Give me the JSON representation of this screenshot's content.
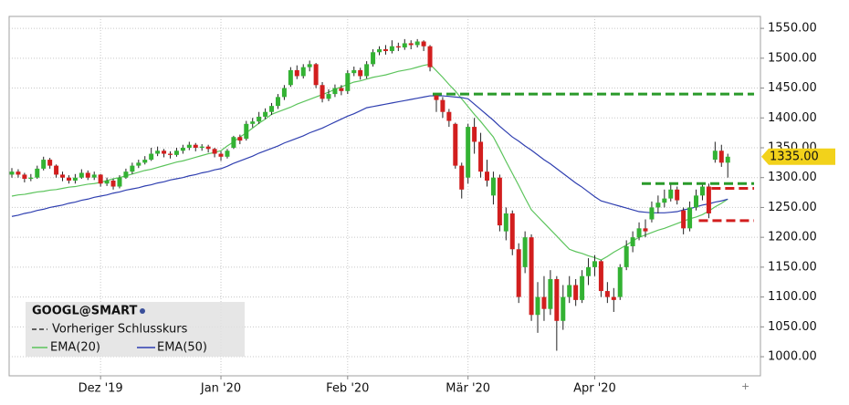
{
  "chart_data": {
    "type": "candlestick",
    "symbol": "GOOGL@SMART",
    "prev_close_label": "Vorheriger Schlusskurs",
    "up_color": "#33b233",
    "down_color": "#d21e1e",
    "grid": true,
    "categories": [
      null,
      null,
      null,
      null,
      null,
      null,
      null,
      null,
      null,
      null,
      null,
      null,
      null,
      null,
      "Dez '19",
      null,
      null,
      null,
      null,
      null,
      null,
      null,
      null,
      null,
      null,
      null,
      null,
      null,
      null,
      null,
      null,
      null,
      null,
      "Jan '20",
      null,
      null,
      null,
      null,
      null,
      null,
      null,
      null,
      null,
      null,
      null,
      null,
      null,
      null,
      null,
      null,
      null,
      null,
      null,
      "Feb '20",
      null,
      null,
      null,
      null,
      null,
      null,
      null,
      null,
      null,
      null,
      null,
      null,
      null,
      null,
      null,
      null,
      null,
      null,
      "Mär '20",
      null,
      null,
      null,
      null,
      null,
      null,
      null,
      null,
      null,
      null,
      null,
      null,
      null,
      null,
      null,
      null,
      null,
      null,
      null,
      "Apr '20",
      null,
      null,
      null,
      null,
      null,
      null,
      null,
      null,
      null,
      null,
      null,
      null,
      null,
      null,
      null,
      null,
      null,
      null,
      null,
      null,
      null
    ],
    "open": [
      1305,
      1310,
      1305,
      1298,
      1300,
      1315,
      1330,
      1320,
      1305,
      1300,
      1295,
      1300,
      1308,
      1300,
      1305,
      1290,
      1295,
      1285,
      1300,
      1310,
      1320,
      1325,
      1330,
      1340,
      1345,
      1340,
      1338,
      1345,
      1350,
      1355,
      1350,
      1352,
      1348,
      1340,
      1335,
      1350,
      1368,
      1365,
      1390,
      1394,
      1402,
      1410,
      1420,
      1435,
      1455,
      1480,
      1470,
      1485,
      1490,
      1455,
      1432,
      1440,
      1450,
      1445,
      1475,
      1480,
      1470,
      1490,
      1510,
      1515,
      1512,
      1520,
      1518,
      1525,
      1522,
      1528,
      1520,
      1440,
      1430,
      1410,
      1390,
      1320,
      1300,
      1385,
      1360,
      1310,
      1270,
      1300,
      1210,
      1240,
      1180,
      1150,
      1200,
      1070,
      1100,
      1080,
      1130,
      1060,
      1100,
      1120,
      1095,
      1135,
      1150,
      1160,
      1110,
      1100,
      1100,
      1150,
      1185,
      1200,
      1215,
      1230,
      1250,
      1258,
      1265,
      1280,
      1245,
      1215,
      1250,
      1270,
      1285,
      1330,
      1345,
      1325
    ],
    "high": [
      1316,
      1314,
      1308,
      1306,
      1320,
      1335,
      1333,
      1322,
      1310,
      1304,
      1306,
      1314,
      1312,
      1310,
      1306,
      1300,
      1298,
      1304,
      1315,
      1325,
      1330,
      1336,
      1350,
      1352,
      1348,
      1344,
      1350,
      1355,
      1360,
      1358,
      1356,
      1355,
      1350,
      1344,
      1348,
      1370,
      1372,
      1395,
      1400,
      1410,
      1416,
      1425,
      1440,
      1455,
      1485,
      1488,
      1490,
      1496,
      1492,
      1460,
      1448,
      1456,
      1455,
      1480,
      1486,
      1484,
      1495,
      1515,
      1520,
      1522,
      1530,
      1526,
      1532,
      1530,
      1532,
      1530,
      1522,
      1440,
      1435,
      1415,
      1392,
      1325,
      1390,
      1400,
      1375,
      1330,
      1310,
      1305,
      1250,
      1245,
      1190,
      1210,
      1205,
      1125,
      1135,
      1145,
      1135,
      1120,
      1135,
      1130,
      1145,
      1165,
      1170,
      1162,
      1125,
      1115,
      1155,
      1195,
      1210,
      1225,
      1230,
      1260,
      1270,
      1280,
      1290,
      1285,
      1250,
      1260,
      1280,
      1292,
      1290,
      1360,
      1355,
      1340
    ],
    "low": [
      1300,
      1300,
      1292,
      1294,
      1298,
      1312,
      1315,
      1300,
      1294,
      1290,
      1290,
      1298,
      1296,
      1296,
      1285,
      1286,
      1280,
      1282,
      1298,
      1306,
      1316,
      1322,
      1328,
      1336,
      1334,
      1332,
      1335,
      1340,
      1346,
      1344,
      1345,
      1342,
      1334,
      1328,
      1332,
      1348,
      1356,
      1362,
      1384,
      1390,
      1398,
      1405,
      1415,
      1430,
      1452,
      1465,
      1466,
      1478,
      1450,
      1426,
      1428,
      1435,
      1438,
      1440,
      1470,
      1464,
      1466,
      1486,
      1505,
      1506,
      1508,
      1512,
      1514,
      1515,
      1518,
      1512,
      1478,
      1410,
      1400,
      1385,
      1315,
      1265,
      1290,
      1340,
      1300,
      1285,
      1255,
      1210,
      1195,
      1170,
      1090,
      1140,
      1060,
      1040,
      1060,
      1070,
      1010,
      1045,
      1090,
      1085,
      1090,
      1120,
      1135,
      1100,
      1090,
      1075,
      1095,
      1145,
      1175,
      1195,
      1200,
      1225,
      1240,
      1250,
      1260,
      1255,
      1205,
      1210,
      1245,
      1262,
      1232,
      1325,
      1318,
      1300
    ],
    "close": [
      1310,
      1305,
      1298,
      1300,
      1315,
      1330,
      1320,
      1305,
      1300,
      1295,
      1300,
      1308,
      1300,
      1305,
      1290,
      1295,
      1285,
      1300,
      1310,
      1320,
      1325,
      1330,
      1340,
      1345,
      1340,
      1338,
      1345,
      1350,
      1355,
      1350,
      1352,
      1348,
      1340,
      1335,
      1345,
      1368,
      1362,
      1390,
      1394,
      1402,
      1410,
      1420,
      1435,
      1450,
      1480,
      1470,
      1485,
      1490,
      1455,
      1432,
      1440,
      1450,
      1445,
      1475,
      1480,
      1470,
      1490,
      1510,
      1515,
      1512,
      1520,
      1518,
      1525,
      1522,
      1528,
      1520,
      1485,
      1430,
      1410,
      1395,
      1320,
      1280,
      1385,
      1360,
      1310,
      1295,
      1300,
      1220,
      1240,
      1180,
      1100,
      1200,
      1070,
      1100,
      1080,
      1130,
      1060,
      1100,
      1120,
      1095,
      1135,
      1150,
      1160,
      1110,
      1100,
      1095,
      1150,
      1185,
      1200,
      1215,
      1210,
      1250,
      1258,
      1265,
      1280,
      1262,
      1215,
      1250,
      1270,
      1285,
      1240,
      1345,
      1325,
      1335
    ],
    "lines": [
      {
        "name": "EMA(20)",
        "color": "#5cc45c",
        "values": [
          1269,
          1271,
          1272,
          1274,
          1276,
          1277,
          1279,
          1280,
          1282,
          1284,
          1285,
          1287,
          1289,
          1290,
          1292,
          1295,
          1298,
          1300,
          1303,
          1306,
          1309,
          1312,
          1314,
          1317,
          1320,
          1323,
          1326,
          1328,
          1331,
          1334,
          1337,
          1340,
          1342,
          1345,
          1353,
          1360,
          1368,
          1375,
          1383,
          1391,
          1398,
          1406,
          1410,
          1414,
          1418,
          1423,
          1427,
          1431,
          1435,
          1439,
          1443,
          1448,
          1452,
          1456,
          1460,
          1462,
          1465,
          1468,
          1470,
          1472,
          1475,
          1478,
          1480,
          1482,
          1485,
          1488,
          1490,
          1479,
          1468,
          1456,
          1445,
          1432,
          1419,
          1406,
          1394,
          1381,
          1368,
          1348,
          1327,
          1307,
          1287,
          1266,
          1246,
          1235,
          1224,
          1213,
          1202,
          1191,
          1180,
          1176,
          1173,
          1169,
          1166,
          1162,
          1168,
          1175,
          1181,
          1187,
          1194,
          1200,
          1204,
          1208,
          1212,
          1215,
          1219,
          1223,
          1227,
          1231,
          1234,
          1238,
          1244,
          1251,
          1257,
          1264
        ]
      },
      {
        "name": "EMA(50)",
        "color": "#2f3fb0",
        "values": [
          1235,
          1237,
          1240,
          1242,
          1245,
          1247,
          1250,
          1252,
          1254,
          1257,
          1259,
          1262,
          1264,
          1267,
          1269,
          1271,
          1274,
          1276,
          1279,
          1281,
          1283,
          1286,
          1288,
          1291,
          1293,
          1296,
          1298,
          1300,
          1303,
          1305,
          1308,
          1310,
          1313,
          1315,
          1319,
          1324,
          1328,
          1332,
          1336,
          1341,
          1345,
          1349,
          1353,
          1358,
          1362,
          1366,
          1370,
          1375,
          1379,
          1383,
          1388,
          1393,
          1398,
          1403,
          1407,
          1412,
          1417,
          1419,
          1421,
          1423,
          1425,
          1427,
          1429,
          1431,
          1433,
          1435,
          1437,
          1437,
          1437,
          1436,
          1435,
          1434,
          1432,
          1423,
          1414,
          1405,
          1396,
          1386,
          1377,
          1368,
          1361,
          1353,
          1346,
          1338,
          1330,
          1323,
          1315,
          1307,
          1299,
          1291,
          1284,
          1276,
          1268,
          1261,
          1258,
          1255,
          1252,
          1249,
          1246,
          1243,
          1242,
          1241,
          1241,
          1241,
          1242,
          1243,
          1246,
          1248,
          1251,
          1254,
          1256,
          1259,
          1261,
          1264
        ]
      }
    ],
    "levels": [
      {
        "value": 1440,
        "color": "#2a9a2a",
        "start": 67
      },
      {
        "value": 1290,
        "color": "#2a9a2a",
        "start": 100
      },
      {
        "value": 1282,
        "color": "#d21e1e",
        "start": 111
      },
      {
        "value": 1228,
        "color": "#d21e1e",
        "start": 109
      }
    ],
    "last_price": {
      "value": 1335,
      "label": "1335.00"
    },
    "ylim": [
      968,
      1570
    ],
    "yticks": [
      {
        "value": 1000,
        "label": "1000.00"
      },
      {
        "value": 1050,
        "label": "1050.00"
      },
      {
        "value": 1100,
        "label": "1100.00"
      },
      {
        "value": 1150,
        "label": "1150.00"
      },
      {
        "value": 1200,
        "label": "1200.00"
      },
      {
        "value": 1250,
        "label": "1250.00"
      },
      {
        "value": 1300,
        "label": "1300.00"
      },
      {
        "value": 1350,
        "label": "1350.00"
      },
      {
        "value": 1400,
        "label": "1400.00"
      },
      {
        "value": 1450,
        "label": "1450.00"
      },
      {
        "value": 1500,
        "label": "1500.00"
      },
      {
        "value": 1550,
        "label": "1550.00"
      }
    ]
  }
}
